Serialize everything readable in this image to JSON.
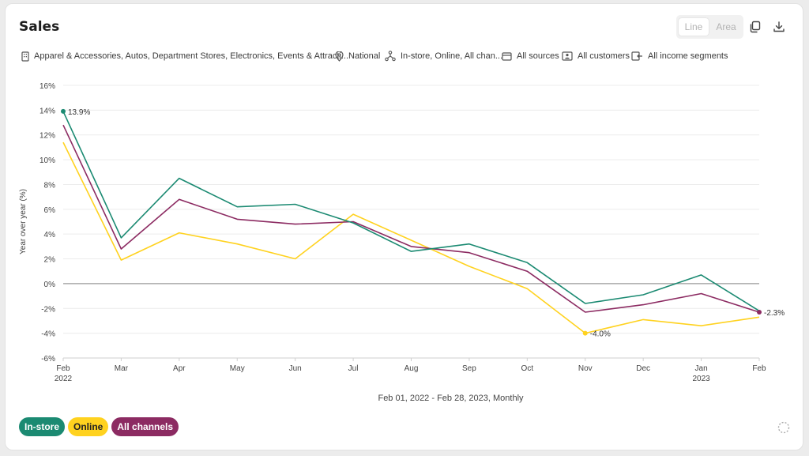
{
  "header": {
    "title": "Sales",
    "toggle_line": "Line",
    "toggle_area": "Area"
  },
  "toolbar": {
    "copy_icon": "copy-icon",
    "download_icon": "download-icon"
  },
  "filters": [
    {
      "icon": "building-icon",
      "label": "Apparel & Accessories, Autos, Department Stores, Electronics, Events & Attracti..."
    },
    {
      "icon": "location-pin-icon",
      "label": "National"
    },
    {
      "icon": "channels-icon",
      "label": "In-store, Online, All chan..."
    },
    {
      "icon": "card-icon",
      "label": "All sources"
    },
    {
      "icon": "customer-id-icon",
      "label": "All customers"
    },
    {
      "icon": "income-icon",
      "label": "All income segments"
    }
  ],
  "chart_data": {
    "type": "line",
    "title": "Sales",
    "ylabel": "Year over year (%)",
    "xlabel": "Feb 01, 2022 - Feb 28, 2023, Monthly",
    "ylim": [
      -6,
      16
    ],
    "yticks": [
      "16%",
      "14%",
      "12%",
      "10%",
      "8%",
      "6%",
      "4%",
      "2%",
      "0%",
      "-2%",
      "-4%",
      "-6%"
    ],
    "categories": [
      "Feb",
      "Mar",
      "Apr",
      "May",
      "Jun",
      "Jul",
      "Aug",
      "Sep",
      "Oct",
      "Nov",
      "Dec",
      "Jan",
      "Feb"
    ],
    "year_labels": [
      "2022",
      "",
      "",
      "",
      "",
      "",
      "",
      "",
      "",
      "",
      "",
      "2023",
      ""
    ],
    "grid": true,
    "series": [
      {
        "name": "In-store",
        "color": "#1b8a72",
        "values": [
          13.9,
          3.7,
          8.5,
          6.2,
          6.4,
          4.9,
          2.6,
          3.2,
          1.7,
          -1.6,
          -0.9,
          0.7,
          -2.2
        ]
      },
      {
        "name": "Online",
        "color": "#ffd21f",
        "values": [
          11.4,
          1.9,
          4.1,
          3.2,
          2.0,
          5.6,
          3.5,
          1.4,
          -0.4,
          -4.0,
          -2.9,
          -3.4,
          -2.7
        ]
      },
      {
        "name": "All channels",
        "color": "#8c2b62",
        "values": [
          12.8,
          2.8,
          6.8,
          5.2,
          4.8,
          5.0,
          3.0,
          2.5,
          1.0,
          -2.3,
          -1.7,
          -0.8,
          -2.3
        ]
      }
    ],
    "annotations": [
      {
        "series": 0,
        "index": 0,
        "text": "13.9%"
      },
      {
        "series": 1,
        "index": 9,
        "text": "-4.0%"
      },
      {
        "series": 2,
        "index": 12,
        "text": "-2.3%"
      }
    ],
    "legend": "bottom-left"
  }
}
